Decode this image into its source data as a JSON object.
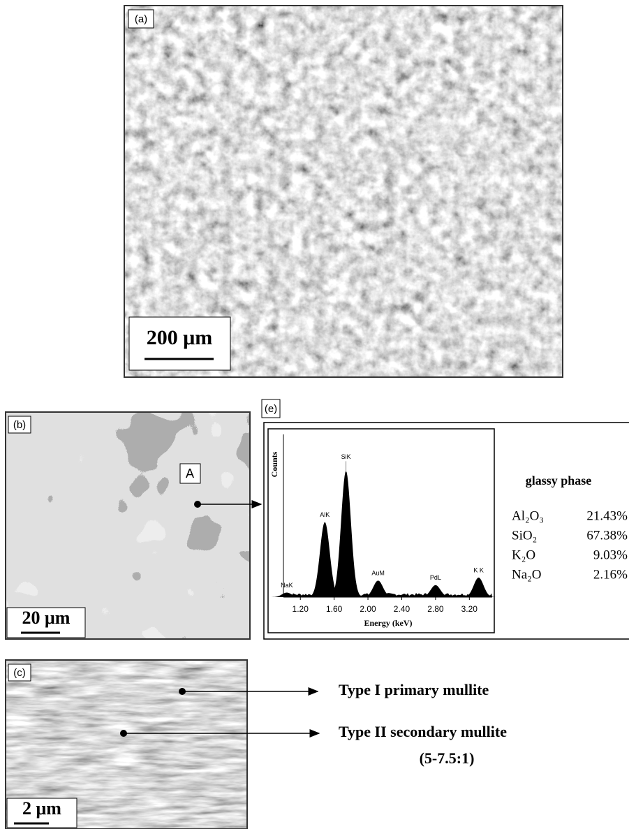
{
  "panels": {
    "a": {
      "label": "(a)",
      "scale_bar": "200 μm"
    },
    "b": {
      "label": "(b)",
      "scale_bar": "20 μm",
      "point": "A"
    },
    "c": {
      "label": "(c)",
      "scale_bar": "2 μm",
      "annotations": [
        "Type I primary mullite",
        "Type II secondary mullite"
      ],
      "ratio": "(5-7.5:1)"
    }
  },
  "spectrum": {
    "label": "(e)",
    "y_label": "Counts",
    "x_label": "Energy (keV)",
    "xlim": [
      1.0,
      3.47
    ],
    "ylim": [
      0,
      100
    ],
    "xticks": [
      {
        "value": 1.2,
        "label": "1.20"
      },
      {
        "value": 1.6,
        "label": "1.60"
      },
      {
        "value": 2.0,
        "label": "2.00"
      },
      {
        "value": 2.4,
        "label": "2.40"
      },
      {
        "value": 2.8,
        "label": "2.80"
      },
      {
        "value": 3.2,
        "label": "3.20"
      }
    ],
    "peaks": [
      {
        "name": "NaK",
        "energy": 1.04,
        "counts": 3
      },
      {
        "name": "AlK",
        "energy": 1.49,
        "counts": 50
      },
      {
        "name": "SiK",
        "energy": 1.74,
        "counts": 84
      },
      {
        "name": "AuM",
        "energy": 2.12,
        "counts": 11
      },
      {
        "name": "PdL",
        "energy": 2.8,
        "counts": 8
      },
      {
        "name": "K K",
        "energy": 3.31,
        "counts": 13
      }
    ]
  },
  "composition": {
    "title": "glassy phase",
    "rows": [
      [
        "Al₂O₃",
        "21.43%"
      ],
      [
        "SiO₂",
        "67.38%"
      ],
      [
        "K₂O",
        "9.03%"
      ],
      [
        "Na₂O",
        "2.16%"
      ]
    ]
  }
}
